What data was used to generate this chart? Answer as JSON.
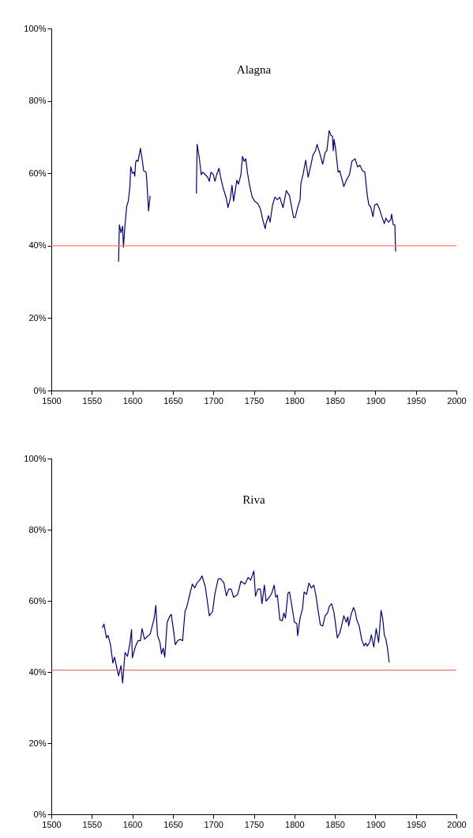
{
  "chart_data": [
    {
      "type": "line",
      "title": "Alagna",
      "xlim": [
        1500,
        2000
      ],
      "xticks": [
        1500,
        1550,
        1600,
        1650,
        1700,
        1750,
        1800,
        1850,
        1900,
        1950,
        2000
      ],
      "ylim": [
        0,
        100
      ],
      "yticks": [
        {
          "value": 0,
          "label": "0%"
        },
        {
          "value": 20,
          "label": "20%"
        },
        {
          "value": 40,
          "label": "40%"
        },
        {
          "value": 60,
          "label": "60%"
        },
        {
          "value": 80,
          "label": "80%"
        },
        {
          "value": 100,
          "label": "100%"
        }
      ],
      "grid": false,
      "marker": "none",
      "line_style": "solid",
      "ref_lines": [
        {
          "axis": "y",
          "value": 40,
          "label": null,
          "color": "#ff8060"
        }
      ],
      "series": [
        {
          "color": "#000080",
          "x": [
            1583,
            1584,
            1586,
            1588,
            1589,
            1591,
            1593,
            1595,
            1597,
            1598,
            1600,
            1602,
            1603,
            1604,
            1605,
            1607,
            1610,
            1612,
            1614,
            1617,
            1618,
            1620,
            1622,
            1650,
            1679,
            1680,
            1683,
            1685,
            1687,
            1690,
            1693,
            1695,
            1697,
            1700,
            1702,
            1704,
            1707,
            1709,
            1712,
            1716,
            1718,
            1721,
            1723,
            1725,
            1729,
            1731,
            1734,
            1736,
            1738,
            1740,
            1742,
            1745,
            1748,
            1751,
            1755,
            1758,
            1761,
            1764,
            1765,
            1768,
            1770,
            1773,
            1776,
            1779,
            1782,
            1786,
            1790,
            1794,
            1799,
            1801,
            1804,
            1807,
            1808,
            1811,
            1814,
            1817,
            1821,
            1823,
            1826,
            1828,
            1831,
            1835,
            1838,
            1840,
            1843,
            1845,
            1847,
            1848,
            1849,
            1851,
            1854,
            1856,
            1859,
            1861,
            1865,
            1868,
            1871,
            1875,
            1878,
            1881,
            1884,
            1887,
            1890,
            1892,
            1894,
            1897,
            1899,
            1902,
            1905,
            1908,
            1911,
            1913,
            1916,
            1919,
            1920,
            1922,
            1924,
            1925
          ],
          "values": [
            35.6,
            45.8,
            43.6,
            45.4,
            39.6,
            45.8,
            50.9,
            52.3,
            56.3,
            61.8,
            60,
            60.3,
            59.2,
            62.9,
            63.6,
            63.3,
            66.9,
            64,
            60.7,
            60.3,
            57.4,
            49.6,
            53.8,
            null,
            54.4,
            68,
            63.6,
            59.6,
            60.3,
            59.6,
            58.9,
            57.8,
            60.3,
            59.6,
            57.8,
            59.6,
            61.4,
            58.9,
            56,
            53.1,
            50.5,
            53.1,
            56.7,
            52.3,
            58.1,
            57,
            59.6,
            64.7,
            63.3,
            64,
            60.3,
            56.3,
            53.4,
            52.3,
            51.6,
            50.2,
            47.2,
            44.7,
            46.1,
            48.3,
            46.5,
            51.2,
            53.4,
            52.7,
            53.4,
            50.5,
            55.2,
            53.8,
            47.8,
            47.8,
            50.5,
            52.7,
            57.1,
            60,
            63.6,
            58.9,
            62.9,
            65.1,
            66.2,
            68,
            65.8,
            62.5,
            65.8,
            66.2,
            71.8,
            70.5,
            70.2,
            66.2,
            69.4,
            66.5,
            60.3,
            60.7,
            58.1,
            56.3,
            58.5,
            59.6,
            63.3,
            64,
            61.8,
            62.2,
            60.7,
            60.3,
            53.8,
            51.2,
            50.9,
            48,
            51.2,
            51.6,
            50.2,
            48,
            46.1,
            47.6,
            46.5,
            47.2,
            48.7,
            45.8,
            45.8,
            38.4
          ]
        }
      ]
    },
    {
      "type": "line",
      "title": "Riva",
      "xlim": [
        1500,
        2000
      ],
      "xticks": [
        1500,
        1550,
        1600,
        1650,
        1700,
        1750,
        1800,
        1850,
        1900,
        1950,
        2000
      ],
      "ylim": [
        0,
        100
      ],
      "yticks": [
        {
          "value": 0,
          "label": "0%"
        },
        {
          "value": 20,
          "label": "20%"
        },
        {
          "value": 40,
          "label": "40%"
        },
        {
          "value": 60,
          "label": "60%"
        },
        {
          "value": 80,
          "label": "80%"
        },
        {
          "value": 100,
          "label": "100%"
        }
      ],
      "grid": false,
      "marker": "none",
      "line_style": "solid",
      "ref_lines": [
        {
          "axis": "y",
          "value": 40.5,
          "label": null,
          "color": "#c8584a"
        }
      ],
      "series": [
        {
          "color": "#000080",
          "x": [
            1563,
            1565,
            1568,
            1570,
            1573,
            1576,
            1578,
            1581,
            1583,
            1586,
            1588,
            1591,
            1594,
            1597,
            1599,
            1600,
            1604,
            1607,
            1610,
            1612,
            1615,
            1618,
            1622,
            1625,
            1627,
            1629,
            1631,
            1634,
            1636,
            1638,
            1640,
            1643,
            1646,
            1648,
            1651,
            1653,
            1656,
            1659,
            1662,
            1665,
            1667,
            1670,
            1674,
            1677,
            1680,
            1683,
            1686,
            1690,
            1693,
            1695,
            1699,
            1702,
            1706,
            1709,
            1713,
            1716,
            1719,
            1722,
            1725,
            1730,
            1734,
            1739,
            1743,
            1746,
            1750,
            1752,
            1755,
            1758,
            1760,
            1763,
            1765,
            1769,
            1772,
            1775,
            1777,
            1779,
            1782,
            1785,
            1787,
            1789,
            1792,
            1794,
            1797,
            1800,
            1803,
            1804,
            1807,
            1810,
            1812,
            1815,
            1818,
            1821,
            1824,
            1827,
            1829,
            1832,
            1835,
            1838,
            1841,
            1843,
            1846,
            1849,
            1853,
            1856,
            1858,
            1861,
            1864,
            1866,
            1867,
            1870,
            1873,
            1875,
            1877,
            1880,
            1883,
            1886,
            1888,
            1890,
            1893,
            1895,
            1898,
            1901,
            1904,
            1907,
            1909,
            1911,
            1913,
            1915,
            1917
          ],
          "values": [
            52.4,
            53.5,
            49.6,
            50.3,
            47.7,
            42.5,
            44.2,
            41,
            38.9,
            41.8,
            36.9,
            45.5,
            44.4,
            48.1,
            51.9,
            44,
            47.3,
            48.8,
            48.8,
            52.2,
            49.2,
            49.9,
            50.7,
            53.3,
            55.1,
            58.7,
            50.3,
            48.4,
            45.1,
            46.7,
            44.2,
            54,
            55.6,
            56.2,
            51.4,
            47.7,
            48.8,
            49.2,
            48.8,
            57,
            58.1,
            61,
            64.7,
            63.6,
            65.1,
            65.8,
            67,
            64,
            59.2,
            55.8,
            57,
            62.1,
            66.2,
            66.2,
            65.1,
            61.4,
            63.3,
            63.3,
            61,
            61.8,
            65.5,
            64.7,
            66.6,
            65.8,
            68.4,
            61.3,
            63.3,
            63.3,
            59.2,
            64.4,
            59.9,
            61,
            62.1,
            64.4,
            61,
            61.6,
            54.7,
            54.4,
            56.6,
            55.1,
            62.1,
            62.5,
            58.4,
            54,
            53.6,
            50.2,
            55.1,
            57.7,
            62.5,
            61.8,
            65,
            63.6,
            64.4,
            61,
            57.7,
            53.3,
            52.9,
            55.8,
            56.6,
            58.4,
            59.2,
            56.6,
            49.6,
            51,
            52.7,
            55.8,
            54,
            55.5,
            52.9,
            56.2,
            58.1,
            57,
            54.7,
            52.9,
            49.2,
            47.3,
            48.1,
            47.3,
            48.4,
            50.4,
            47,
            52.2,
            48.3,
            57.3,
            55.1,
            50.4,
            49.2,
            46.6,
            42.7
          ]
        }
      ]
    }
  ]
}
